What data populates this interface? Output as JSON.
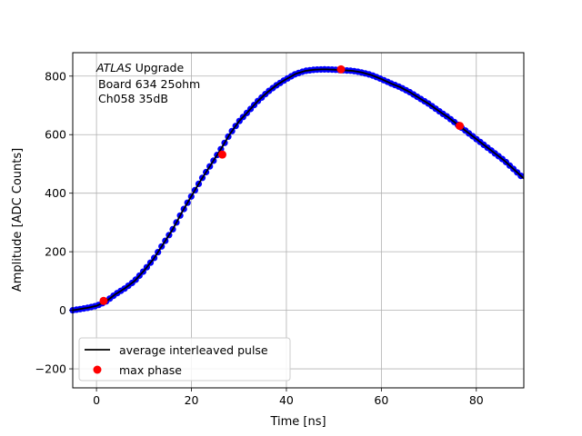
{
  "chart_data": {
    "type": "scatter",
    "xlabel": "Time [ns]",
    "ylabel": "Amplitude [ADC Counts]",
    "xlim": [
      -5,
      90
    ],
    "ylim": [
      -265,
      880
    ],
    "xticks": [
      0,
      20,
      40,
      60,
      80
    ],
    "yticks": [
      -200,
      0,
      200,
      400,
      600,
      800
    ],
    "ytick_labels": [
      "−200",
      "0",
      "200",
      "400",
      "600",
      "800"
    ],
    "grid": true,
    "legend_position": "lower-left",
    "annotation": {
      "line1_italic": "ATLAS",
      "line1_rest": " Upgrade",
      "line2": "Board 634 25ohm",
      "line3": "Ch058 35dB"
    },
    "pulse_curve": {
      "x": [
        -5,
        -2,
        0,
        2,
        4,
        6,
        8,
        10,
        12,
        14,
        16,
        18,
        20,
        22,
        24,
        26,
        28,
        30,
        32,
        34,
        36,
        38,
        40,
        42,
        44,
        46,
        48,
        50,
        52,
        54,
        56,
        58,
        60,
        62,
        64,
        66,
        68,
        70,
        72,
        74,
        76,
        78,
        80,
        82,
        84,
        86,
        88,
        90
      ],
      "y": [
        0,
        8,
        15,
        30,
        55,
        75,
        100,
        135,
        175,
        225,
        275,
        335,
        390,
        445,
        495,
        545,
        600,
        645,
        680,
        715,
        745,
        770,
        790,
        808,
        818,
        822,
        823,
        822,
        820,
        818,
        812,
        803,
        790,
        775,
        762,
        745,
        725,
        705,
        682,
        660,
        635,
        610,
        585,
        560,
        535,
        510,
        480,
        450
      ]
    },
    "series": [
      {
        "name": "average interleaved pulse",
        "color": "#000000",
        "style": "line"
      },
      {
        "name": "max phase",
        "color": "#ff0000",
        "style": "marker",
        "x": [
          1.5,
          26.5,
          51.5,
          76.5
        ],
        "y": [
          32,
          532,
          823,
          630
        ]
      }
    ],
    "sample_color": "#0000ff"
  }
}
